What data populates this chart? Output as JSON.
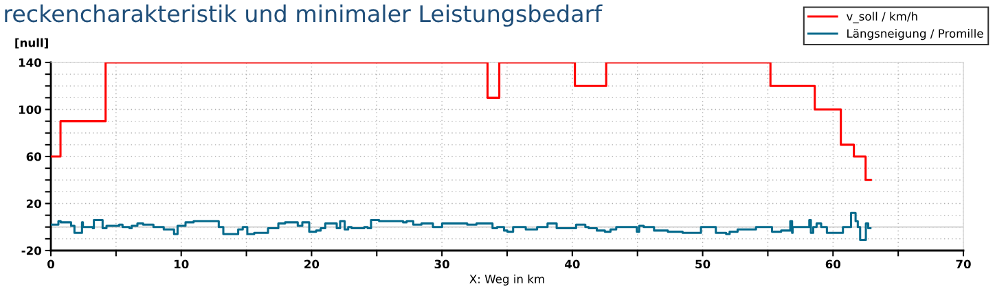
{
  "chart_data": {
    "type": "step",
    "title": "reckencharakteristik und minimaler Leistungsbedarf",
    "xlabel": "X: Weg in km",
    "ylabel": "[null]",
    "xlim": [
      0,
      70
    ],
    "ylim": [
      -20,
      140
    ],
    "xticks": [
      0,
      {
        "value": 5,
        "label": null
      },
      10,
      {
        "value": 15,
        "label": null
      },
      20,
      {
        "value": 25,
        "label": null
      },
      30,
      {
        "value": 35,
        "label": null
      },
      40,
      {
        "value": 45,
        "label": null
      },
      50,
      {
        "value": 55,
        "label": null
      },
      60,
      {
        "value": 65,
        "label": null
      },
      70
    ],
    "yticks": [
      -20,
      {
        "value": -10,
        "label": null
      },
      {
        "value": 0,
        "label": null
      },
      {
        "value": 10,
        "label": null
      },
      20,
      {
        "value": 30,
        "label": null
      },
      {
        "value": 40,
        "label": null
      },
      {
        "value": 50,
        "label": null
      },
      60,
      {
        "value": 70,
        "label": null
      },
      {
        "value": 80,
        "label": null
      },
      {
        "value": 90,
        "label": null
      },
      100,
      {
        "value": 110,
        "label": null
      },
      {
        "value": 120,
        "label": null
      },
      {
        "value": 130,
        "label": null
      },
      140
    ],
    "grid": true,
    "legend": "top right",
    "line_style": "solid",
    "marker": "none",
    "ref_lines": [
      {
        "axis": "y",
        "value": 0,
        "color": "#c8c8c8"
      }
    ],
    "series": [
      {
        "name": "v_soll / km/h",
        "color": "#ff0000",
        "x": [
          0,
          0.74,
          4.2,
          33.5,
          34.4,
          40.2,
          42.6,
          55.2,
          58.6,
          60.6,
          61.6,
          62.5,
          62.9
        ],
        "values": [
          60,
          90,
          140,
          110,
          140,
          120,
          140,
          120,
          100,
          70,
          60,
          40,
          40
        ]
      },
      {
        "name": "Längsneigung / Promille",
        "color": "#046a8c",
        "x": [
          0,
          0.58,
          0.76,
          1.55,
          1.81,
          2.39,
          2.46,
          3.22,
          3.3,
          3.97,
          4.27,
          5.24,
          5.5,
          6.03,
          6.2,
          6.64,
          7.08,
          7.87,
          8.66,
          9.45,
          9.72,
          10.33,
          10.95,
          12.88,
          13.23,
          14.37,
          14.72,
          15.07,
          15.6,
          16.66,
          17.45,
          17.97,
          18.94,
          19.29,
          19.82,
          20.35,
          20.7,
          21.05,
          21.93,
          22.19,
          22.54,
          22.81,
          23.07,
          24.04,
          24.3,
          24.56,
          25.18,
          27.02,
          27.29,
          27.8,
          28.43,
          29.31,
          30.01,
          31.94,
          32.65,
          33.88,
          34.23,
          34.76,
          35.02,
          35.46,
          36.43,
          37.3,
          38.1,
          38.8,
          40.29,
          41.0,
          41.26,
          41.88,
          42.5,
          42.93,
          43.37,
          44.95,
          45.13,
          45.48,
          46.27,
          47.33,
          48.46,
          49.87,
          51.01,
          51.8,
          52.07,
          52.68,
          54.09,
          55.32,
          56.02,
          56.72,
          56.86,
          56.9,
          58.18,
          58.3,
          58.48,
          58.74,
          59.09,
          59.53,
          60.76,
          61.38,
          61.73,
          61.9,
          62.08,
          62.52,
          62.7,
          62.87
        ],
        "values": [
          2,
          5,
          4,
          1,
          -5,
          4,
          0,
          -1,
          6,
          -1,
          1,
          2,
          0,
          -1,
          1,
          3,
          2,
          0,
          -2,
          -6,
          1,
          4,
          5,
          0,
          -6,
          -2,
          0,
          -6,
          -5,
          -1,
          3,
          4,
          1,
          4,
          -4,
          -3,
          -1,
          3,
          -1,
          5,
          -2,
          0,
          -1,
          0,
          -1,
          6,
          5,
          4,
          5,
          2,
          3,
          0,
          3,
          2,
          3,
          -1,
          0,
          -3,
          -4,
          0,
          -2,
          0,
          3,
          -1,
          2,
          0,
          -1,
          -3,
          -4,
          -2,
          0,
          -4,
          1,
          0,
          -3,
          -4,
          -5,
          0,
          -5,
          -6,
          -4,
          -2,
          0,
          -4,
          -3,
          5,
          -5,
          0,
          6,
          -5,
          0,
          3,
          0,
          -5,
          0,
          12,
          5,
          0,
          -11,
          3,
          -1,
          -1
        ]
      }
    ]
  }
}
